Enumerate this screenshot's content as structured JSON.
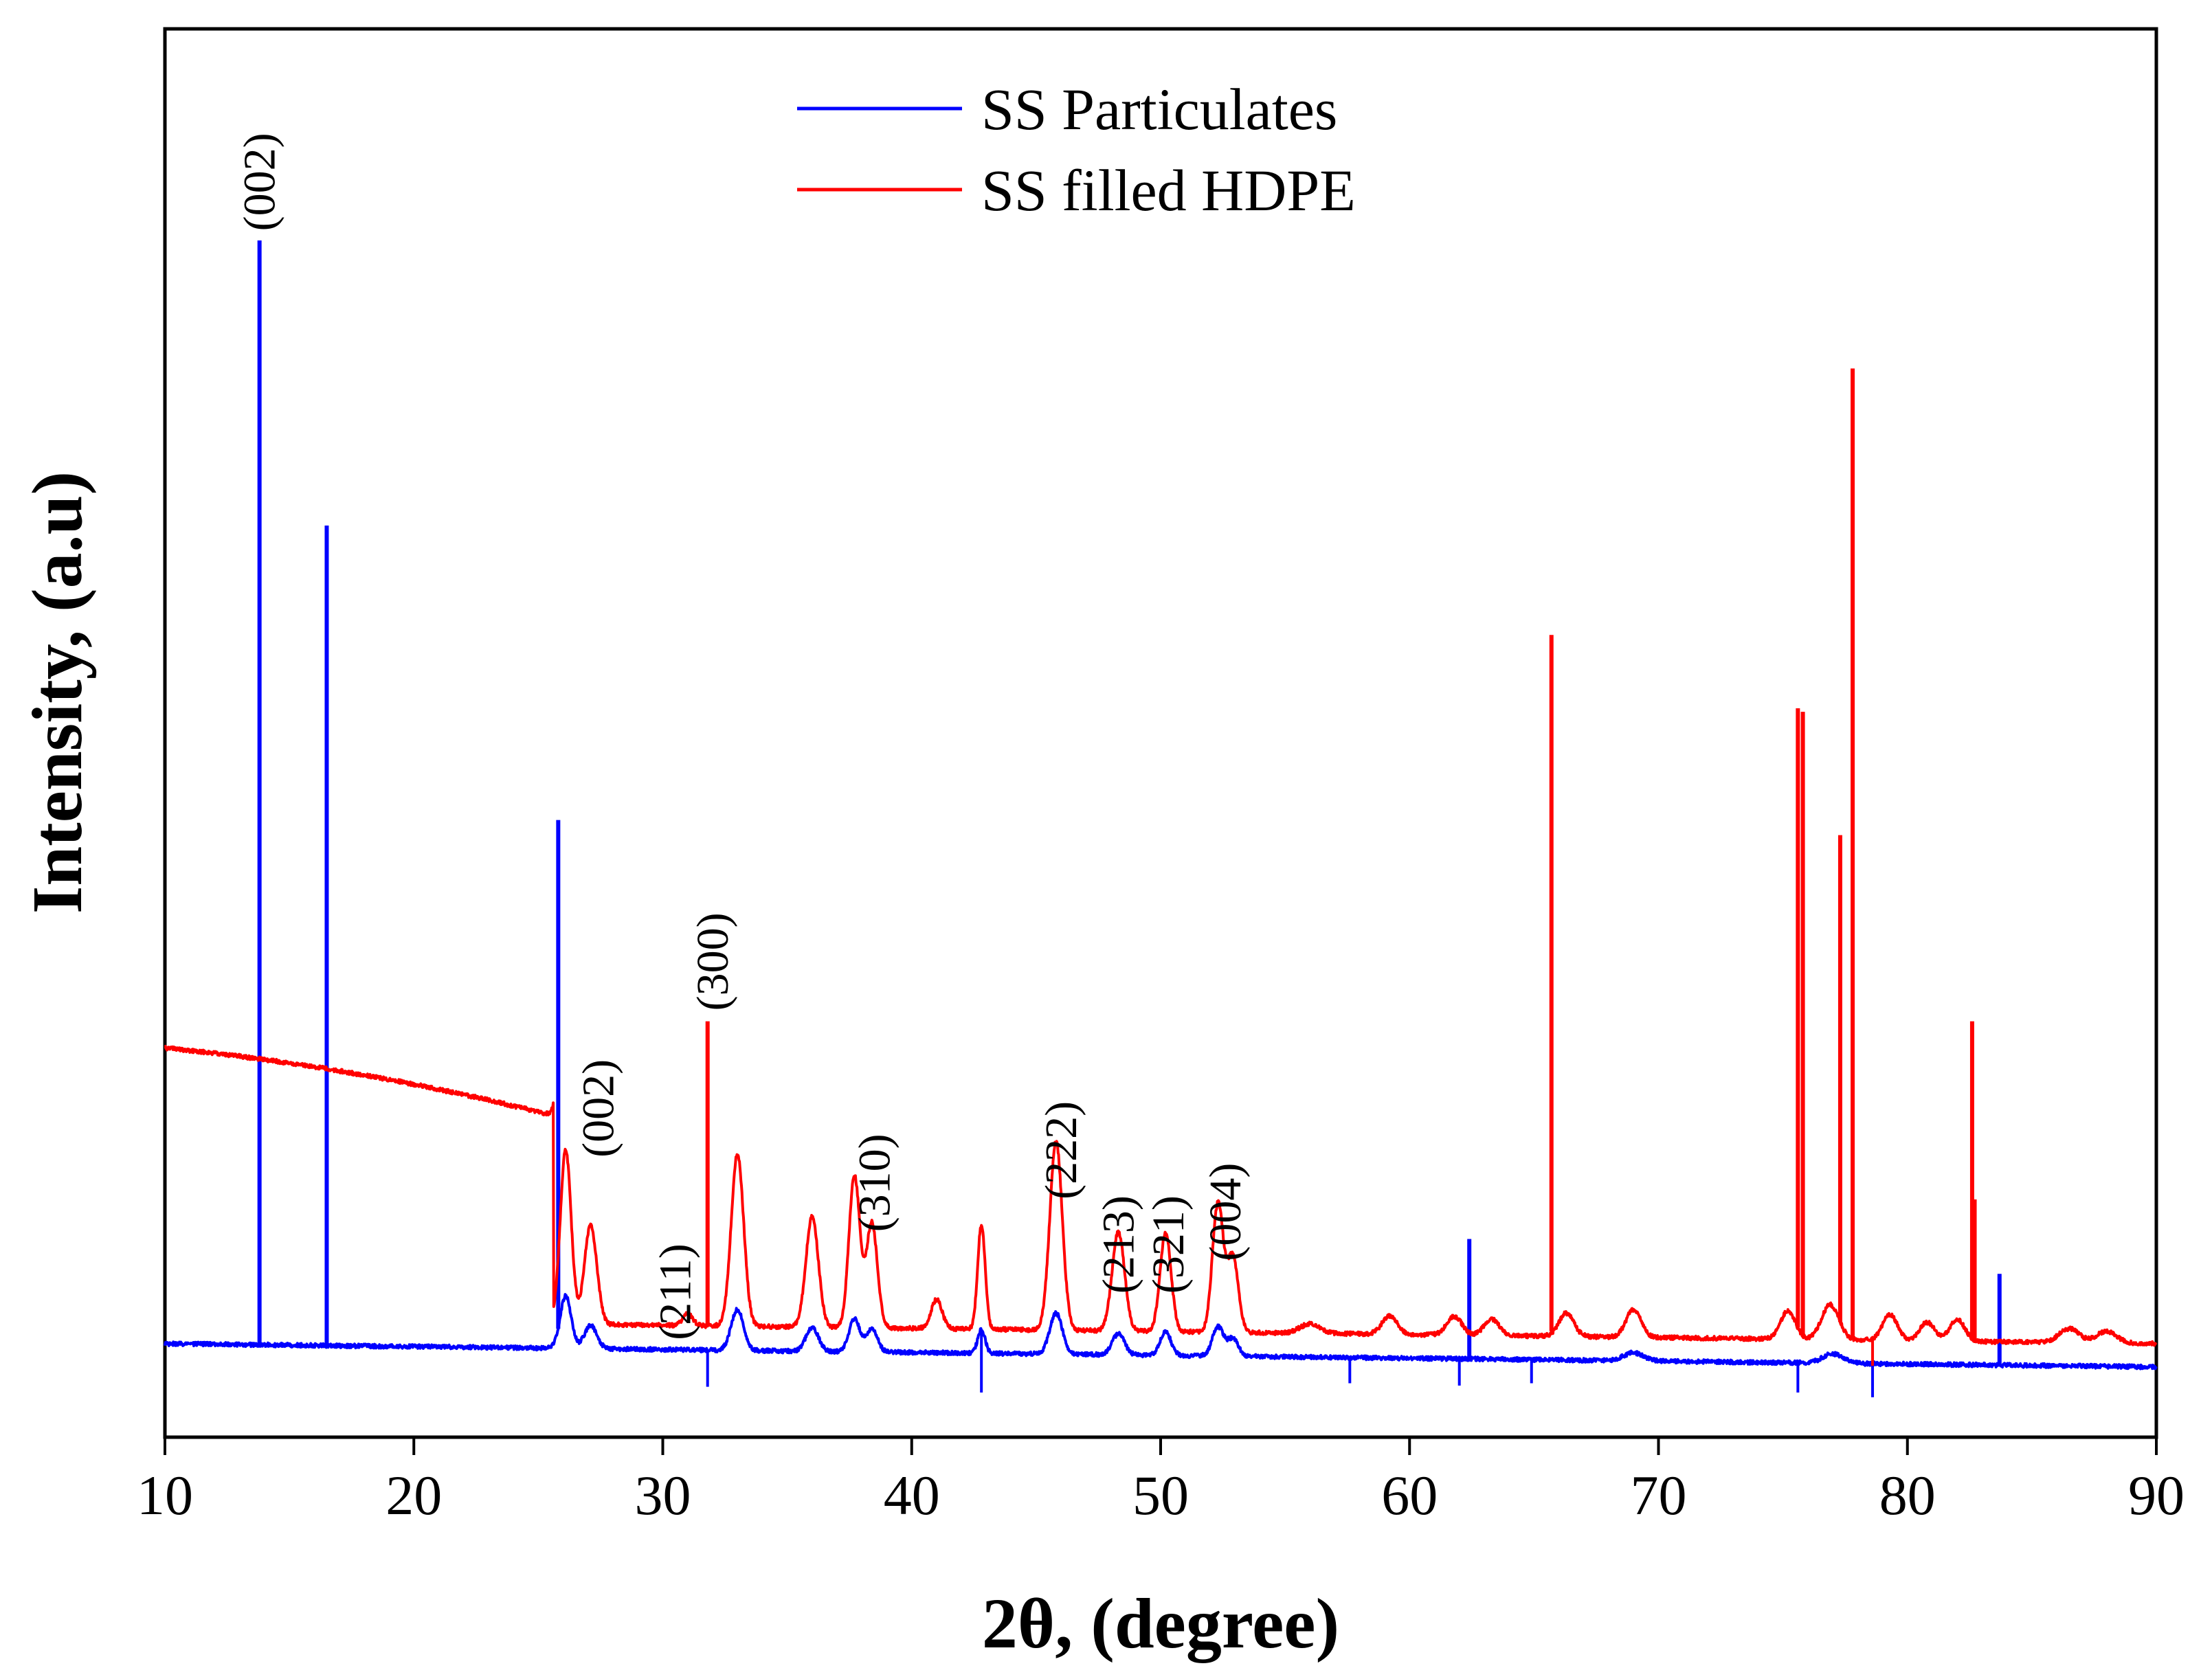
{
  "chart_data": {
    "type": "line",
    "xlabel": "2θ, (degree)",
    "ylabel": "Intensity, (a.u)",
    "xlim": [
      10,
      90
    ],
    "ylim": [
      0,
      100
    ],
    "xticks": [
      10,
      20,
      30,
      40,
      50,
      60,
      70,
      80,
      90
    ],
    "legend_position": "top-center",
    "series": [
      {
        "name": "SS Particulates",
        "color": "#0000ff",
        "baseline_start": 5.2,
        "baseline_end": 3.2,
        "step_at": 25.6,
        "broad_peaks": [
          {
            "x": 26.1,
            "h": 4.5,
            "w": 0.22
          },
          {
            "x": 27.1,
            "h": 2.0,
            "w": 0.25
          },
          {
            "x": 33.0,
            "h": 3.5,
            "w": 0.25
          },
          {
            "x": 36.0,
            "h": 2.0,
            "w": 0.25
          },
          {
            "x": 37.7,
            "h": 2.8,
            "w": 0.22
          },
          {
            "x": 38.4,
            "h": 2.0,
            "w": 0.22
          },
          {
            "x": 42.8,
            "h": 2.0,
            "w": 0.15
          },
          {
            "x": 45.8,
            "h": 3.5,
            "w": 0.25
          },
          {
            "x": 48.3,
            "h": 1.8,
            "w": 0.25
          },
          {
            "x": 50.2,
            "h": 2.0,
            "w": 0.22
          },
          {
            "x": 52.3,
            "h": 2.5,
            "w": 0.22
          },
          {
            "x": 52.9,
            "h": 1.5,
            "w": 0.22
          },
          {
            "x": 69.0,
            "h": 0.7,
            "w": 0.4
          },
          {
            "x": 77.0,
            "h": 0.8,
            "w": 0.4
          }
        ],
        "spikes": [
          {
            "x": 13.8,
            "y": 100.0
          },
          {
            "x": 16.5,
            "y": 75.5
          },
          {
            "x": 25.8,
            "y": 50.2
          },
          {
            "x": 62.4,
            "y": 14.2
          },
          {
            "x": 83.7,
            "y": 11.2
          }
        ],
        "dips": [
          {
            "x": 31.8,
            "y": 1.5
          },
          {
            "x": 42.8,
            "y": 1.0
          },
          {
            "x": 57.6,
            "y": 1.8
          },
          {
            "x": 62.0,
            "y": 1.6
          },
          {
            "x": 64.9,
            "y": 1.8
          },
          {
            "x": 75.6,
            "y": 1.0
          },
          {
            "x": 78.6,
            "y": 0.6
          }
        ]
      },
      {
        "name": "SS filled HDPE",
        "color": "#ff0000",
        "baseline_start": 15.3,
        "baseline_end": 9.5,
        "step_at": 25.6,
        "high_baseline_start": 6.9,
        "high_baseline_end": 5.2,
        "broad_peaks": [
          {
            "x": 26.1,
            "h": 15.0,
            "w": 0.22
          },
          {
            "x": 27.1,
            "h": 8.5,
            "w": 0.25
          },
          {
            "x": 31.0,
            "h": 1.0,
            "w": 0.2
          },
          {
            "x": 33.0,
            "h": 14.8,
            "w": 0.25
          },
          {
            "x": 36.0,
            "h": 9.5,
            "w": 0.25
          },
          {
            "x": 37.7,
            "h": 13.0,
            "w": 0.22
          },
          {
            "x": 38.4,
            "h": 9.0,
            "w": 0.22
          },
          {
            "x": 41.0,
            "h": 2.5,
            "w": 0.22
          },
          {
            "x": 42.8,
            "h": 9.0,
            "w": 0.15
          },
          {
            "x": 45.8,
            "h": 16.2,
            "w": 0.25
          },
          {
            "x": 48.3,
            "h": 8.5,
            "w": 0.25
          },
          {
            "x": 50.2,
            "h": 8.5,
            "w": 0.22
          },
          {
            "x": 52.3,
            "h": 11.0,
            "w": 0.22
          },
          {
            "x": 52.9,
            "h": 6.5,
            "w": 0.22
          },
          {
            "x": 56.0,
            "h": 0.8,
            "w": 0.4
          },
          {
            "x": 59.2,
            "h": 1.6,
            "w": 0.3
          },
          {
            "x": 61.8,
            "h": 1.6,
            "w": 0.3
          },
          {
            "x": 63.3,
            "h": 1.4,
            "w": 0.3
          },
          {
            "x": 66.3,
            "h": 2.0,
            "w": 0.3
          },
          {
            "x": 69.0,
            "h": 2.4,
            "w": 0.3
          },
          {
            "x": 75.2,
            "h": 2.4,
            "w": 0.3
          },
          {
            "x": 76.9,
            "h": 3.0,
            "w": 0.35
          },
          {
            "x": 79.3,
            "h": 2.2,
            "w": 0.3
          },
          {
            "x": 80.8,
            "h": 1.6,
            "w": 0.3
          },
          {
            "x": 82.0,
            "h": 1.9,
            "w": 0.3
          },
          {
            "x": 86.5,
            "h": 1.2,
            "w": 0.4
          },
          {
            "x": 88.0,
            "h": 1.0,
            "w": 0.4
          }
        ],
        "spikes": [
          {
            "x": 31.8,
            "y": 32.9
          },
          {
            "x": 65.7,
            "y": 66.1
          },
          {
            "x": 75.6,
            "y": 59.8
          },
          {
            "x": 75.8,
            "y": 59.5
          },
          {
            "x": 77.3,
            "y": 48.9
          },
          {
            "x": 77.8,
            "y": 89.0
          },
          {
            "x": 82.6,
            "y": 32.9
          },
          {
            "x": 82.7,
            "y": 17.6
          }
        ],
        "dips": [
          {
            "x": 78.6,
            "y": 3.3
          }
        ]
      }
    ],
    "annotations": [
      {
        "text": "(002)",
        "x": 13.8,
        "y": 100.8
      },
      {
        "text": "(002)",
        "x": 27.4,
        "y": 21.2
      },
      {
        "text": "(211)",
        "x": 30.5,
        "y": 5.5
      },
      {
        "text": "(300)",
        "x": 32.0,
        "y": 33.8
      },
      {
        "text": "(310)",
        "x": 38.5,
        "y": 14.8
      },
      {
        "text": "(222)",
        "x": 46.0,
        "y": 17.6
      },
      {
        "text": "(213)",
        "x": 48.3,
        "y": 9.5
      },
      {
        "text": "(321)",
        "x": 50.3,
        "y": 9.5
      },
      {
        "text": "(004)",
        "x": 52.6,
        "y": 12.3
      }
    ]
  }
}
